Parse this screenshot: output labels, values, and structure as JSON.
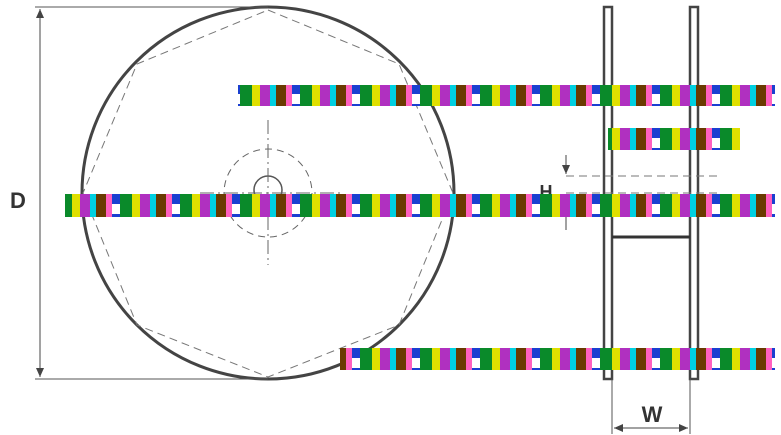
{
  "labels": {
    "diameter": "D",
    "hub_height": "H",
    "width": "W"
  }
}
